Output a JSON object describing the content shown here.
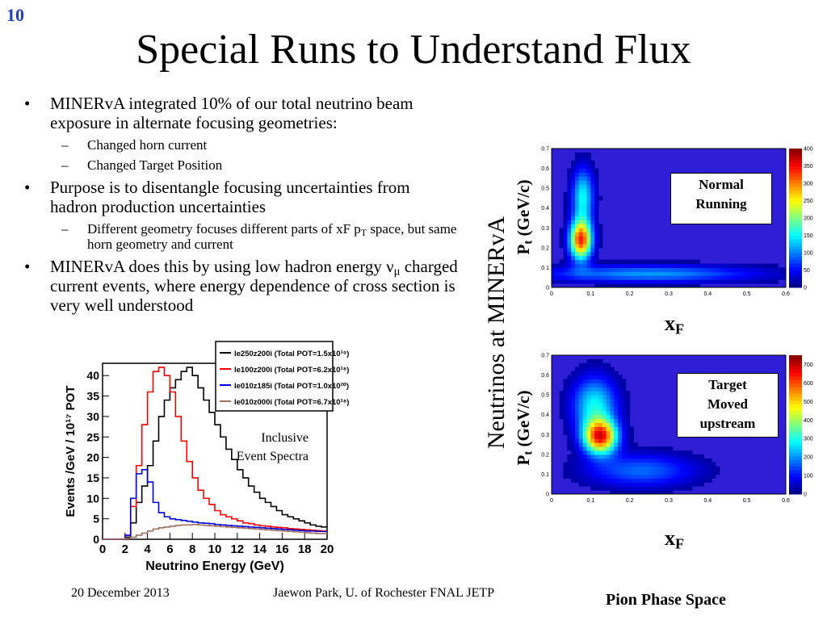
{
  "slide_number": "10",
  "title": "Special Runs to Understand Flux",
  "bullets": {
    "b1": "MINERvA integrated 10% of our total neutrino beam exposure in alternate focusing geometries:",
    "b1_sub1": "Changed horn current",
    "b1_sub2": "Changed Target Position",
    "b2": "Purpose is to disentangle focusing uncertainties from hadron production uncertainties",
    "b2_sub1_pre": "Different geometry focuses different parts of xF p",
    "b2_sub1_sub": "T",
    "b2_sub1_post": " space, but same horn geometry and current",
    "b3_pre": "MINERvA does this by using low hadron energy ",
    "b3_nu": "ν",
    "b3_mu": "μ",
    "b3_post": " charged current events, where energy dependence of cross section is very well understood"
  },
  "footer": {
    "date": "20 December 2013",
    "author": "Jaewon Park, U. of Rochester  FNAL JETP",
    "caption": "Pion Phase Space"
  },
  "right_panel": {
    "side_label": "Neutrinos at MINERvA",
    "pt_main": "P",
    "pt_sub": "t",
    "pt_unit": " (GeV/c)",
    "xf_main": "x",
    "xf_sub": "F",
    "box1_line1": "Normal",
    "box1_line2": "Running",
    "box2_line1": "Target",
    "box2_line2": "Moved",
    "box2_line3": "upstream"
  },
  "colors": {
    "slide_number": "#1f3fbf",
    "heatmap_background": "#2e1fd6",
    "plot_border": "#000000"
  },
  "chart_data": [
    {
      "type": "line",
      "annotation": "Inclusive Event Spectra",
      "ylabel": "Events /GeV / 10¹⁷ POT",
      "xlabel": "Neutrino Energy (GeV)",
      "xlim": [
        0,
        20
      ],
      "ylim": [
        0,
        43
      ],
      "x_ticks": [
        0,
        2,
        4,
        6,
        8,
        10,
        12,
        14,
        16,
        18,
        20
      ],
      "y_ticks": [
        0,
        5,
        10,
        15,
        20,
        25,
        30,
        35,
        40
      ],
      "legend_position": "top-right",
      "x": [
        0,
        0.5,
        1,
        1.5,
        2,
        2.5,
        3,
        3.5,
        4,
        4.5,
        5,
        5.5,
        6,
        6.5,
        7,
        7.5,
        8,
        8.5,
        9,
        9.5,
        10,
        10.5,
        11,
        11.5,
        12,
        12.5,
        13,
        13.5,
        14,
        14.5,
        15,
        15.5,
        16,
        16.5,
        17,
        17.5,
        18,
        18.5,
        19,
        19.5,
        20
      ],
      "series": [
        {
          "name": "le250z200i (Total POT=1.5x10¹⁹)",
          "color": "#000000",
          "values": [
            0,
            0,
            0,
            0,
            0.5,
            4,
            9,
            13,
            18,
            24,
            30,
            34,
            37,
            39,
            41,
            42,
            40,
            37,
            34,
            31,
            28,
            25,
            22,
            19.5,
            17,
            15,
            13,
            11.5,
            10,
            9,
            8,
            7,
            6,
            5.5,
            5,
            4.5,
            4,
            3.5,
            3.2,
            3,
            2.8
          ]
        },
        {
          "name": "le100z200i (Total POT=6.2x10¹⁸)",
          "color": "#ff0000",
          "values": [
            0,
            0,
            0,
            0,
            1,
            8,
            18,
            28,
            36,
            41,
            42,
            40,
            36,
            30,
            24,
            19,
            15,
            12,
            10,
            8.5,
            7,
            6,
            5.5,
            5,
            4.5,
            4,
            3.8,
            3.5,
            3.3,
            3.2,
            3,
            2.9,
            2.8,
            2.6,
            2.5,
            2.4,
            2.3,
            2.2,
            2.1,
            2,
            2
          ]
        },
        {
          "name": "le010z185i (Total POT=1.0x10²⁰)",
          "color": "#0000dd",
          "values": [
            0,
            0,
            0,
            0,
            1,
            10,
            16,
            17,
            14,
            9,
            6.5,
            5.5,
            5,
            4.8,
            4.6,
            4.4,
            4.2,
            4,
            3.9,
            3.8,
            3.6,
            3.5,
            3.4,
            3.3,
            3.2,
            3.1,
            3,
            2.9,
            2.8,
            2.7,
            2.6,
            2.5,
            2.4,
            2.3,
            2.2,
            2.1,
            2,
            2,
            1.9,
            1.9,
            1.8
          ]
        },
        {
          "name": "le010z000i (Total POT=6.7x10¹⁸)",
          "color": "#a07060",
          "values": [
            0,
            0,
            0,
            0,
            0.2,
            0.5,
            1,
            1.5,
            2,
            2.5,
            2.8,
            3,
            3.2,
            3.4,
            3.5,
            3.5,
            3.6,
            3.5,
            3.4,
            3.3,
            3.2,
            3.1,
            3,
            2.9,
            2.8,
            2.7,
            2.6,
            2.5,
            2.4,
            2.3,
            2.2,
            2.1,
            2,
            1.9,
            1.8,
            1.7,
            1.6,
            1.5,
            1.4,
            1.4,
            1.3
          ]
        }
      ]
    },
    {
      "type": "heatmap",
      "annotation": "Normal Running",
      "xlabel": "xF",
      "ylabel": "Pt (GeV/c)",
      "xlim": [
        0,
        0.6
      ],
      "ylim": [
        0,
        0.7
      ],
      "x_ticks": [
        0,
        0.1,
        0.2,
        0.3,
        0.4,
        0.5,
        0.6
      ],
      "y_ticks": [
        0,
        0.1,
        0.2,
        0.3,
        0.4,
        0.5,
        0.6,
        0.7
      ],
      "colorbar_ticks": [
        0,
        50,
        100,
        150,
        200,
        250,
        300,
        350,
        400
      ],
      "zlim": [
        0,
        400
      ],
      "blobs": [
        {
          "x": 0.075,
          "y": 0.24,
          "sx": 0.02,
          "sy": 0.07,
          "amp": 330
        },
        {
          "x": 0.08,
          "y": 0.46,
          "sx": 0.02,
          "sy": 0.1,
          "amp": 150
        },
        {
          "x": 0.25,
          "y": 0.07,
          "sx": 0.2,
          "sy": 0.03,
          "amp": 110
        }
      ]
    },
    {
      "type": "heatmap",
      "annotation": "Target Moved upstream",
      "xlabel": "xF",
      "ylabel": "Pt (GeV/c)",
      "xlim": [
        0,
        0.6
      ],
      "ylim": [
        0,
        0.7
      ],
      "x_ticks": [
        0,
        0.1,
        0.2,
        0.3,
        0.4,
        0.5,
        0.6
      ],
      "y_ticks": [
        0,
        0.1,
        0.2,
        0.3,
        0.4,
        0.5,
        0.6,
        0.7
      ],
      "colorbar_ticks": [
        0,
        100,
        200,
        300,
        400,
        500,
        600,
        700
      ],
      "zlim": [
        0,
        750
      ],
      "blobs": [
        {
          "x": 0.125,
          "y": 0.29,
          "sx": 0.03,
          "sy": 0.06,
          "amp": 620
        },
        {
          "x": 0.11,
          "y": 0.45,
          "sx": 0.04,
          "sy": 0.1,
          "amp": 280
        },
        {
          "x": 0.23,
          "y": 0.12,
          "sx": 0.1,
          "sy": 0.06,
          "amp": 170
        }
      ]
    }
  ]
}
